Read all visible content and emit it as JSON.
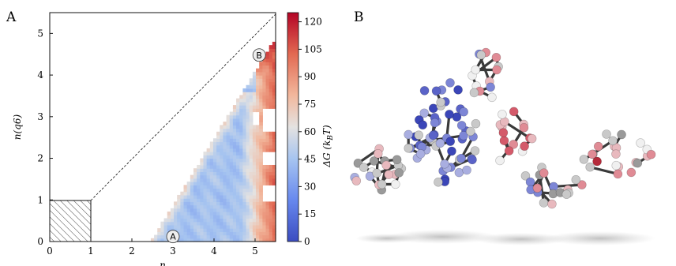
{
  "panels": {
    "a": "A",
    "b": "B"
  },
  "chart_data": {
    "type": "heatmap",
    "xlabel": "n",
    "ylabel": "n(q6)",
    "x_ticks": [
      "0",
      "1",
      "2",
      "3",
      "4",
      "5"
    ],
    "y_ticks": [
      "0",
      "1",
      "2",
      "3",
      "4",
      "5"
    ],
    "xlim": [
      0,
      5.5
    ],
    "ylim": [
      0,
      5.5
    ],
    "colorbar": {
      "label": "ΔG (k_BT)",
      "ticks": [
        "0",
        "15",
        "30",
        "45",
        "60",
        "75",
        "90",
        "105",
        "120"
      ],
      "range": [
        0,
        125
      ],
      "colors": [
        "#3b4cc0",
        "#f2f0ef",
        "#b40426"
      ]
    },
    "annotations": [
      {
        "label": "A",
        "x": 3.0,
        "y": 0.12
      },
      {
        "label": "B",
        "x": 5.1,
        "y": 4.48
      }
    ],
    "diagonal": "n(q6) = n",
    "hatched_region": {
      "x": [
        0,
        1
      ],
      "y": [
        0,
        1
      ]
    }
  }
}
